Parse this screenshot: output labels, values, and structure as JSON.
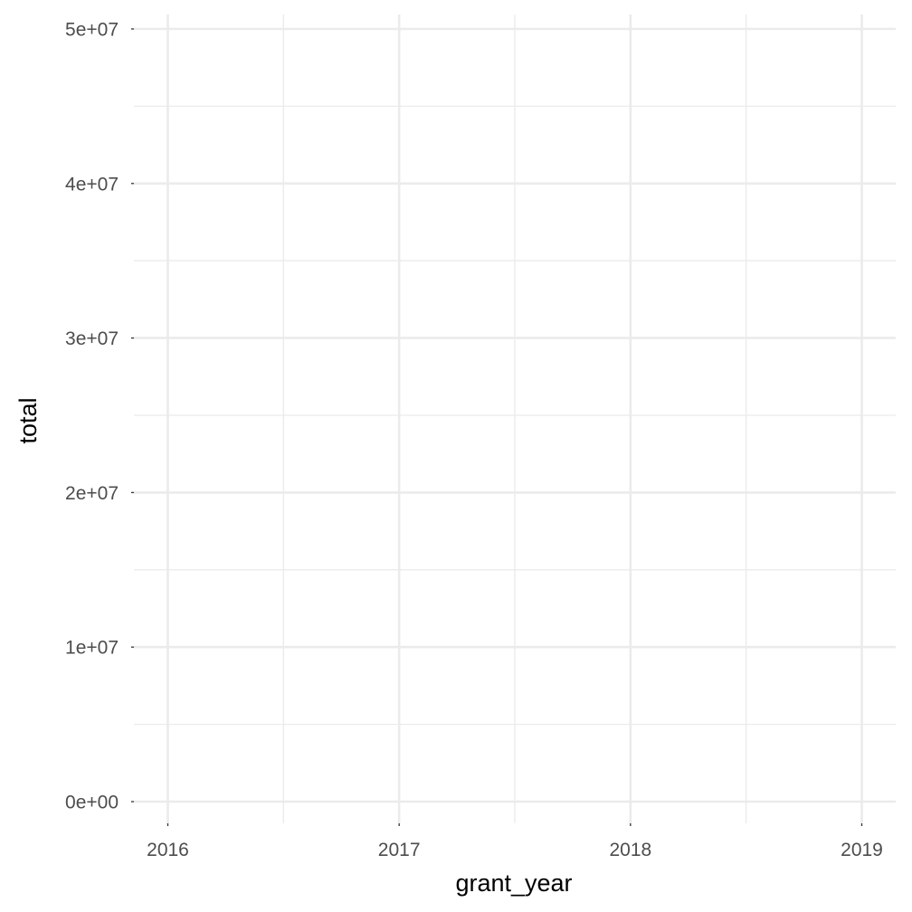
{
  "chart_data": {
    "type": "line",
    "title": "",
    "xlabel": "grant_year",
    "ylabel": "total",
    "x_ticks": [
      "2016",
      "2017",
      "2018",
      "2019"
    ],
    "x_tick_values": [
      2016,
      2017,
      2018,
      2019
    ],
    "y_ticks": [
      "0e+00",
      "1e+07",
      "2e+07",
      "3e+07",
      "4e+07",
      "5e+07"
    ],
    "y_tick_values": [
      0,
      10000000,
      20000000,
      30000000,
      40000000,
      50000000
    ],
    "xlim": [
      2016,
      2019
    ],
    "ylim": [
      0,
      50000000
    ],
    "grid": true,
    "series": []
  }
}
